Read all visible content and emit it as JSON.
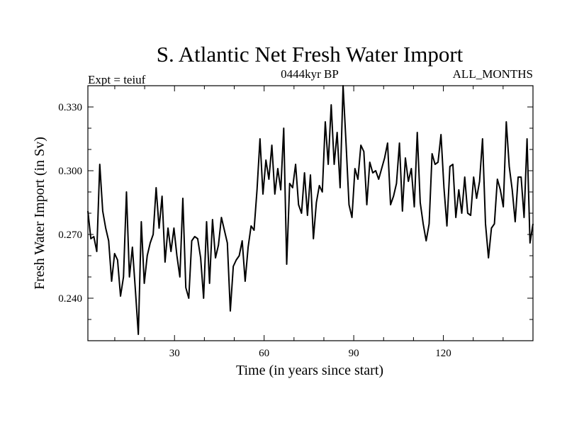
{
  "chart_data": {
    "type": "line",
    "title": "S. Atlantic Net Fresh Water Import",
    "subtitle_left": "Expt = teiuf",
    "subtitle_center": "0444kyr BP",
    "subtitle_right": "ALL_MONTHS",
    "xlabel": "Time (in years since start)",
    "ylabel": "Fresh Water Import (in Sv)",
    "xlim": [
      1,
      150
    ],
    "ylim": [
      0.22,
      0.34
    ],
    "xticks": [
      30,
      60,
      90,
      120
    ],
    "xtick_labels": [
      "30",
      "60",
      "90",
      "120"
    ],
    "yticks": [
      0.24,
      0.27,
      0.3,
      0.33
    ],
    "ytick_labels": [
      "0.240",
      "0.270",
      "0.300",
      "0.330"
    ],
    "series": [
      {
        "name": "Fresh Water Import",
        "values": [
          0.281,
          0.268,
          0.269,
          0.262,
          0.303,
          0.281,
          0.273,
          0.267,
          0.248,
          0.261,
          0.258,
          0.241,
          0.25,
          0.29,
          0.25,
          0.264,
          0.244,
          0.223,
          0.276,
          0.247,
          0.26,
          0.266,
          0.27,
          0.292,
          0.273,
          0.288,
          0.257,
          0.273,
          0.262,
          0.273,
          0.26,
          0.25,
          0.287,
          0.245,
          0.24,
          0.267,
          0.269,
          0.268,
          0.259,
          0.24,
          0.276,
          0.247,
          0.277,
          0.259,
          0.265,
          0.278,
          0.272,
          0.266,
          0.234,
          0.255,
          0.258,
          0.26,
          0.267,
          0.248,
          0.264,
          0.274,
          0.272,
          0.291,
          0.315,
          0.289,
          0.305,
          0.296,
          0.312,
          0.289,
          0.301,
          0.291,
          0.32,
          0.256,
          0.294,
          0.292,
          0.303,
          0.284,
          0.28,
          0.299,
          0.279,
          0.298,
          0.268,
          0.285,
          0.293,
          0.29,
          0.323,
          0.303,
          0.331,
          0.303,
          0.318,
          0.292,
          0.34,
          0.313,
          0.284,
          0.278,
          0.301,
          0.296,
          0.312,
          0.309,
          0.284,
          0.304,
          0.299,
          0.3,
          0.296,
          0.301,
          0.306,
          0.313,
          0.284,
          0.288,
          0.294,
          0.313,
          0.281,
          0.306,
          0.295,
          0.301,
          0.283,
          0.318,
          0.285,
          0.275,
          0.267,
          0.275,
          0.308,
          0.303,
          0.304,
          0.317,
          0.292,
          0.274,
          0.302,
          0.303,
          0.278,
          0.291,
          0.28,
          0.297,
          0.28,
          0.279,
          0.297,
          0.287,
          0.295,
          0.315,
          0.275,
          0.259,
          0.273,
          0.275,
          0.296,
          0.291,
          0.283,
          0.323,
          0.302,
          0.291,
          0.276,
          0.297,
          0.297,
          0.278,
          0.315,
          0.266,
          0.275
        ]
      }
    ]
  }
}
